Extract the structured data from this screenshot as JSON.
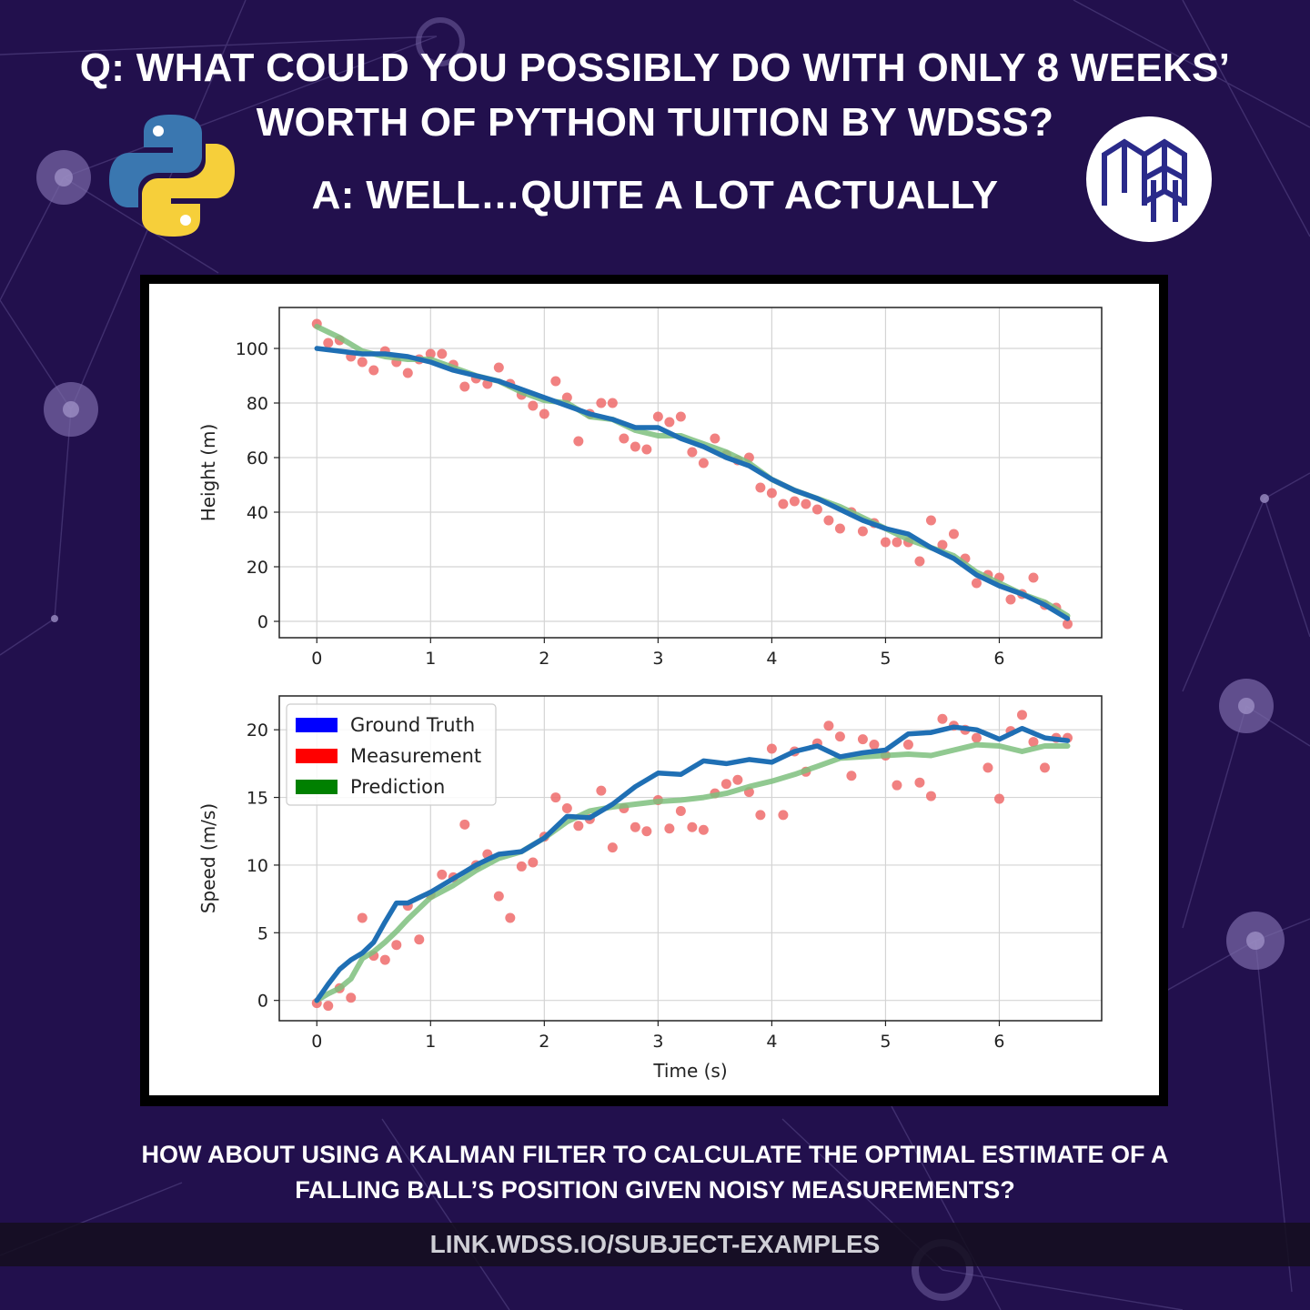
{
  "headline": {
    "question_line1": "Q: WHAT COULD YOU POSSIBLY DO WITH ONLY 8 WEEKS’",
    "question_line2": "WORTH OF PYTHON TUITION BY WDSS?",
    "answer": "A: WELL…QUITE A LOT ACTUALLY"
  },
  "logos": {
    "left": "python-logo",
    "right": "wdss-logo"
  },
  "caption": {
    "line1": "HOW ABOUT USING A KALMAN FILTER TO CALCULATE THE OPTIMAL ESTIMATE OF A",
    "line2": "FALLING BALL’S POSITION GIVEN NOISY MEASUREMENTS?"
  },
  "link": "LINK.WDSS.IO/SUBJECT-EXAMPLES",
  "colors": {
    "background": "#22104d",
    "ground_truth": "#1f6fb4",
    "measurement": "#ee6b6b",
    "prediction": "#7ec07e",
    "legend_ground_truth": "#0000ff",
    "legend_measurement": "#ff0000",
    "legend_prediction": "#008000"
  },
  "chart_data": [
    {
      "type": "line",
      "ylabel": "Height (m)",
      "xlabel": "",
      "xlim": [
        -0.33,
        6.9
      ],
      "ylim": [
        -6,
        115
      ],
      "xticks": [
        0,
        1,
        2,
        3,
        4,
        5,
        6
      ],
      "yticks": [
        0,
        20,
        40,
        60,
        80,
        100
      ],
      "grid": true,
      "series": [
        {
          "name": "Ground Truth",
          "kind": "line",
          "x": [
            0,
            0.2,
            0.4,
            0.6,
            0.8,
            1.0,
            1.2,
            1.4,
            1.6,
            1.8,
            2.0,
            2.2,
            2.4,
            2.6,
            2.8,
            3.0,
            3.2,
            3.4,
            3.6,
            3.8,
            4.0,
            4.2,
            4.4,
            4.6,
            4.8,
            5.0,
            5.2,
            5.4,
            5.6,
            5.8,
            6.0,
            6.2,
            6.4,
            6.6
          ],
          "y": [
            100,
            99,
            98,
            98,
            97,
            95,
            92,
            90,
            88,
            85,
            82,
            79,
            76,
            74,
            71,
            71,
            67,
            64,
            60,
            57,
            52,
            48,
            45,
            41,
            37,
            34,
            32,
            27,
            23,
            17,
            13,
            10,
            6,
            1
          ]
        },
        {
          "name": "Measurement",
          "kind": "scatter",
          "x": [
            0,
            0.1,
            0.2,
            0.3,
            0.4,
            0.5,
            0.6,
            0.7,
            0.8,
            0.9,
            1.0,
            1.1,
            1.2,
            1.3,
            1.4,
            1.5,
            1.6,
            1.7,
            1.8,
            1.9,
            2.0,
            2.1,
            2.2,
            2.3,
            2.4,
            2.5,
            2.6,
            2.7,
            2.8,
            2.9,
            3.0,
            3.1,
            3.2,
            3.3,
            3.4,
            3.5,
            3.6,
            3.7,
            3.8,
            3.9,
            4.0,
            4.1,
            4.2,
            4.3,
            4.4,
            4.5,
            4.6,
            4.7,
            4.8,
            4.9,
            5.0,
            5.1,
            5.2,
            5.3,
            5.4,
            5.5,
            5.6,
            5.7,
            5.8,
            5.9,
            6.0,
            6.1,
            6.2,
            6.3,
            6.4,
            6.5,
            6.6
          ],
          "y": [
            109,
            102,
            103,
            97,
            95,
            92,
            99,
            95,
            91,
            96,
            98,
            98,
            94,
            86,
            89,
            87,
            93,
            87,
            83,
            79,
            76,
            88,
            82,
            66,
            76,
            80,
            80,
            67,
            64,
            63,
            75,
            73,
            75,
            62,
            58,
            67,
            61,
            59,
            60,
            49,
            47,
            43,
            44,
            43,
            41,
            37,
            34,
            40,
            33,
            36,
            29,
            29,
            29,
            22,
            37,
            28,
            32,
            23,
            14,
            17,
            16,
            8,
            10,
            16,
            6,
            5,
            -1
          ]
        },
        {
          "name": "Prediction",
          "kind": "line",
          "x": [
            0,
            0.2,
            0.4,
            0.6,
            0.8,
            1.0,
            1.2,
            1.4,
            1.6,
            1.8,
            2.0,
            2.2,
            2.4,
            2.6,
            2.8,
            3.0,
            3.2,
            3.4,
            3.6,
            3.8,
            4.0,
            4.2,
            4.4,
            4.6,
            4.8,
            5.0,
            5.2,
            5.4,
            5.6,
            5.8,
            6.0,
            6.2,
            6.4,
            6.6
          ],
          "y": [
            108,
            104,
            99,
            97,
            96,
            96,
            93,
            90,
            88,
            84,
            81,
            80,
            75,
            74,
            70,
            68,
            68,
            65,
            62,
            58,
            52,
            48,
            45,
            42,
            38,
            34,
            30,
            27,
            24,
            18,
            14,
            10,
            7,
            2
          ]
        }
      ]
    },
    {
      "type": "line",
      "ylabel": "Speed (m/s)",
      "xlabel": "Time (s)",
      "xlim": [
        -0.33,
        6.9
      ],
      "ylim": [
        -1.5,
        22.5
      ],
      "xticks": [
        0,
        1,
        2,
        3,
        4,
        5,
        6
      ],
      "yticks": [
        0,
        5,
        10,
        15,
        20
      ],
      "grid": true,
      "legend": "top-left",
      "series": [
        {
          "name": "Ground Truth",
          "kind": "line",
          "x": [
            0,
            0.1,
            0.2,
            0.3,
            0.4,
            0.5,
            0.6,
            0.7,
            0.8,
            0.9,
            1.0,
            1.2,
            1.4,
            1.6,
            1.8,
            2.0,
            2.2,
            2.4,
            2.6,
            2.8,
            3.0,
            3.2,
            3.4,
            3.6,
            3.8,
            4.0,
            4.2,
            4.4,
            4.6,
            4.8,
            5.0,
            5.2,
            5.4,
            5.6,
            5.8,
            6.0,
            6.2,
            6.4,
            6.6
          ],
          "y": [
            0,
            1.2,
            2.3,
            3.0,
            3.5,
            4.3,
            5.8,
            7.2,
            7.2,
            7.6,
            8.0,
            9.0,
            10.0,
            10.8,
            11.0,
            12.0,
            13.6,
            13.5,
            14.5,
            15.8,
            16.8,
            16.7,
            17.7,
            17.5,
            17.8,
            17.6,
            18.4,
            18.8,
            18.0,
            18.3,
            18.5,
            19.7,
            19.8,
            20.2,
            20.0,
            19.3,
            20.1,
            19.4,
            19.2
          ]
        },
        {
          "name": "Measurement",
          "kind": "scatter",
          "x": [
            0,
            0.1,
            0.2,
            0.3,
            0.4,
            0.5,
            0.6,
            0.7,
            0.8,
            0.9,
            1.0,
            1.1,
            1.2,
            1.3,
            1.4,
            1.5,
            1.6,
            1.7,
            1.8,
            1.9,
            2.0,
            2.1,
            2.2,
            2.3,
            2.4,
            2.5,
            2.6,
            2.7,
            2.8,
            2.9,
            3.0,
            3.1,
            3.2,
            3.3,
            3.4,
            3.5,
            3.6,
            3.7,
            3.8,
            3.9,
            4.0,
            4.1,
            4.2,
            4.3,
            4.4,
            4.5,
            4.6,
            4.7,
            4.8,
            4.9,
            5.0,
            5.1,
            5.2,
            5.3,
            5.4,
            5.5,
            5.6,
            5.7,
            5.8,
            5.9,
            6.0,
            6.1,
            6.2,
            6.3,
            6.4,
            6.5,
            6.6
          ],
          "y": [
            -0.2,
            -0.4,
            0.9,
            0.2,
            6.1,
            3.3,
            3.0,
            4.1,
            7.0,
            4.5,
            7.8,
            9.3,
            9.1,
            13.0,
            10.0,
            10.8,
            7.7,
            6.1,
            9.9,
            10.2,
            12.1,
            15.0,
            14.2,
            12.9,
            13.4,
            15.5,
            11.3,
            14.2,
            12.8,
            12.5,
            14.8,
            12.7,
            14.0,
            12.8,
            12.6,
            15.3,
            16.0,
            16.3,
            15.4,
            13.7,
            18.6,
            13.7,
            18.4,
            16.9,
            19.0,
            20.3,
            19.5,
            16.6,
            19.3,
            18.9,
            18.1,
            15.9,
            18.9,
            16.1,
            15.1,
            20.8,
            20.3,
            20.0,
            19.4,
            17.2,
            14.9,
            19.9,
            21.1,
            19.1,
            17.2,
            19.4,
            19.4
          ]
        },
        {
          "name": "Prediction",
          "kind": "line",
          "x": [
            0,
            0.1,
            0.2,
            0.3,
            0.4,
            0.5,
            0.6,
            0.7,
            0.8,
            0.9,
            1.0,
            1.2,
            1.4,
            1.6,
            1.8,
            2.0,
            2.2,
            2.4,
            2.6,
            2.8,
            3.0,
            3.2,
            3.4,
            3.6,
            3.8,
            4.0,
            4.2,
            4.4,
            4.6,
            4.8,
            5.0,
            5.2,
            5.4,
            5.6,
            5.8,
            6.0,
            6.2,
            6.4,
            6.6
          ],
          "y": [
            0,
            0.5,
            0.9,
            1.6,
            3.1,
            3.6,
            4.3,
            5.1,
            6.0,
            6.8,
            7.6,
            8.5,
            9.6,
            10.5,
            11.0,
            12.0,
            13.2,
            14.0,
            14.3,
            14.5,
            14.7,
            14.8,
            15.0,
            15.3,
            15.8,
            16.2,
            16.7,
            17.3,
            17.9,
            18.0,
            18.1,
            18.2,
            18.1,
            18.5,
            18.9,
            18.8,
            18.4,
            18.8,
            18.8
          ]
        }
      ]
    }
  ]
}
